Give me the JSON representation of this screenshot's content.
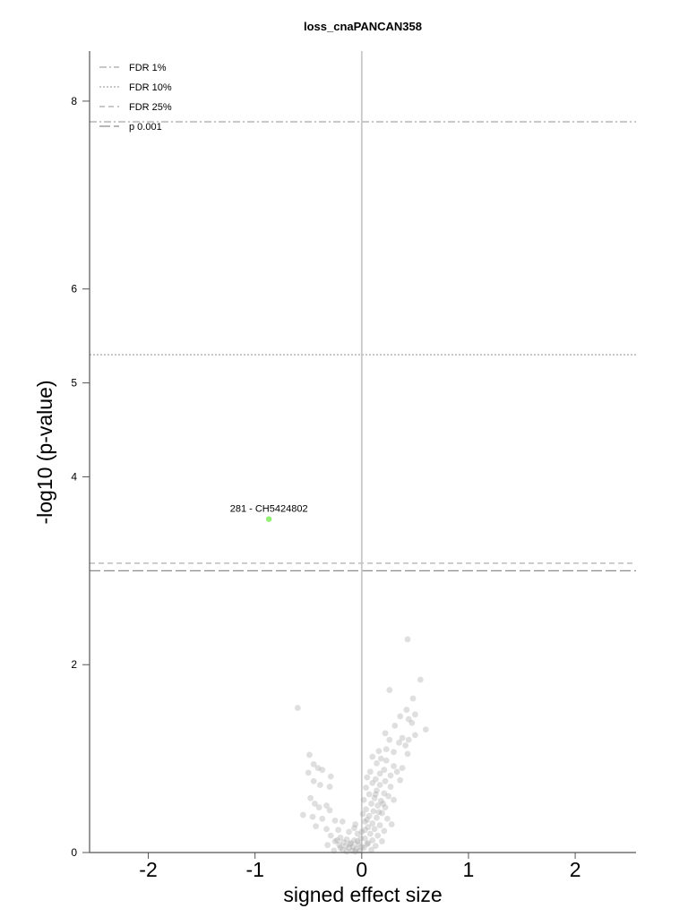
{
  "chart_data": {
    "type": "scatter",
    "title": "loss_cnaPANCAN358",
    "xlabel": "signed effect size",
    "ylabel": "-log10 (p-value)",
    "xlim": [
      -2.55,
      2.57
    ],
    "ylim": [
      0,
      8.6
    ],
    "x_ticks": [
      "-2",
      "-1",
      "0",
      "1",
      "2"
    ],
    "y_ticks": [
      "0",
      "2",
      "4",
      "5",
      "6",
      "8"
    ],
    "legend_position": "top-left",
    "thresholds": [
      {
        "name": "FDR 1%",
        "y": 7.78,
        "style": "dashdot",
        "color": "#a6a6a6"
      },
      {
        "name": "FDR 10%",
        "y": 5.3,
        "style": "dotted",
        "color": "#a6a6a6"
      },
      {
        "name": "FDR 25%",
        "y": 3.08,
        "style": "dashed",
        "color": "#a6a6a6"
      },
      {
        "name": "p 0.001",
        "y": 3.0,
        "style": "longdash",
        "color": "#8c8c8c"
      }
    ],
    "highlighted": [
      {
        "label": "281 - CH5424802",
        "x": -0.87,
        "y": 3.55,
        "color": "#90ee70"
      }
    ],
    "point_color": "#9a9a9a",
    "points": [
      [
        0.43,
        2.27
      ],
      [
        0.55,
        1.84
      ],
      [
        0.26,
        1.73
      ],
      [
        0.48,
        1.64
      ],
      [
        0.42,
        1.52
      ],
      [
        0.5,
        1.47
      ],
      [
        0.36,
        1.45
      ],
      [
        0.44,
        1.42
      ],
      [
        0.47,
        1.38
      ],
      [
        0.31,
        1.35
      ],
      [
        0.6,
        1.31
      ],
      [
        0.22,
        1.27
      ],
      [
        0.5,
        1.25
      ],
      [
        0.38,
        1.22
      ],
      [
        0.44,
        1.2
      ],
      [
        0.26,
        1.2
      ],
      [
        0.35,
        1.17
      ],
      [
        0.41,
        1.14
      ],
      [
        0.23,
        1.1
      ],
      [
        0.16,
        1.08
      ],
      [
        0.3,
        1.07
      ],
      [
        0.43,
        1.05
      ],
      [
        0.1,
        1.02
      ],
      [
        0.18,
        1.0
      ],
      [
        0.23,
        0.98
      ],
      [
        0.14,
        0.95
      ],
      [
        0.3,
        0.92
      ],
      [
        0.38,
        0.9
      ],
      [
        0.21,
        0.88
      ],
      [
        0.33,
        0.86
      ],
      [
        0.08,
        0.86
      ],
      [
        0.17,
        0.84
      ],
      [
        0.27,
        0.82
      ],
      [
        0.05,
        0.8
      ],
      [
        0.13,
        0.78
      ],
      [
        0.22,
        0.76
      ],
      [
        0.36,
        0.77
      ],
      [
        0.1,
        0.74
      ],
      [
        0.17,
        0.72
      ],
      [
        0.27,
        0.7
      ],
      [
        0.04,
        0.69
      ],
      [
        0.14,
        0.66
      ],
      [
        0.21,
        0.63
      ],
      [
        0.07,
        0.62
      ],
      [
        0.25,
        0.6
      ],
      [
        0.12,
        0.58
      ],
      [
        0.18,
        0.55
      ],
      [
        0.02,
        0.56
      ],
      [
        0.09,
        0.52
      ],
      [
        0.15,
        0.5
      ],
      [
        0.22,
        0.48
      ],
      [
        0.04,
        0.46
      ],
      [
        0.11,
        0.44
      ],
      [
        0.19,
        0.42
      ],
      [
        0.01,
        0.41
      ],
      [
        0.07,
        0.39
      ],
      [
        0.14,
        0.37
      ],
      [
        0.24,
        0.36
      ],
      [
        0.03,
        0.33
      ],
      [
        0.1,
        0.31
      ],
      [
        0.17,
        0.29
      ],
      [
        0.28,
        0.3
      ],
      [
        0.06,
        0.27
      ],
      [
        0.12,
        0.25
      ],
      [
        0.21,
        0.23
      ],
      [
        0.0,
        0.22
      ],
      [
        0.08,
        0.2
      ],
      [
        0.15,
        0.18
      ],
      [
        0.03,
        0.15
      ],
      [
        0.1,
        0.13
      ],
      [
        0.19,
        0.12
      ],
      [
        0.05,
        0.09
      ],
      [
        0.13,
        0.07
      ],
      [
        0.02,
        0.05
      ],
      [
        0.09,
        0.03
      ],
      [
        -0.6,
        1.54
      ],
      [
        -0.49,
        1.04
      ],
      [
        -0.45,
        0.94
      ],
      [
        -0.41,
        0.9
      ],
      [
        -0.5,
        0.85
      ],
      [
        -0.37,
        0.88
      ],
      [
        -0.29,
        0.81
      ],
      [
        -0.45,
        0.76
      ],
      [
        -0.39,
        0.72
      ],
      [
        -0.3,
        0.7
      ],
      [
        -0.48,
        0.58
      ],
      [
        -0.44,
        0.52
      ],
      [
        -0.33,
        0.5
      ],
      [
        -0.4,
        0.48
      ],
      [
        -0.3,
        0.45
      ],
      [
        -0.55,
        0.4
      ],
      [
        -0.46,
        0.38
      ],
      [
        -0.37,
        0.36
      ],
      [
        -0.25,
        0.34
      ],
      [
        -0.18,
        0.33
      ],
      [
        -0.06,
        0.3
      ],
      [
        -0.43,
        0.28
      ],
      [
        -0.33,
        0.25
      ],
      [
        -0.22,
        0.24
      ],
      [
        -0.12,
        0.22
      ],
      [
        -0.04,
        0.2
      ],
      [
        -0.29,
        0.18
      ],
      [
        -0.2,
        0.16
      ],
      [
        -0.14,
        0.14
      ],
      [
        -0.07,
        0.13
      ],
      [
        -0.25,
        0.12
      ],
      [
        -0.17,
        0.11
      ],
      [
        -0.1,
        0.1
      ],
      [
        -0.03,
        0.09
      ],
      [
        -0.21,
        0.08
      ],
      [
        -0.15,
        0.07
      ],
      [
        -0.08,
        0.06
      ],
      [
        -0.12,
        0.05
      ],
      [
        -0.05,
        0.04
      ],
      [
        -0.18,
        0.03
      ],
      [
        -0.02,
        0.02
      ],
      [
        -0.09,
        0.02
      ],
      [
        -0.26,
        0.02
      ],
      [
        -0.14,
        0.01
      ],
      [
        -0.06,
        0.01
      ],
      [
        -0.2,
        0.05
      ],
      [
        -0.11,
        0.09
      ],
      [
        -0.04,
        0.12
      ],
      [
        -0.32,
        0.08
      ],
      [
        -0.23,
        0.13
      ],
      [
        0.06,
        0.1
      ],
      [
        0.0,
        0.06
      ],
      [
        -0.01,
        0.15
      ],
      [
        0.03,
        0.24
      ],
      [
        -0.07,
        0.26
      ],
      [
        0.2,
        0.52
      ],
      [
        0.13,
        0.62
      ],
      [
        0.3,
        0.56
      ],
      [
        0.05,
        0.35
      ],
      [
        0.16,
        0.43
      ]
    ]
  }
}
